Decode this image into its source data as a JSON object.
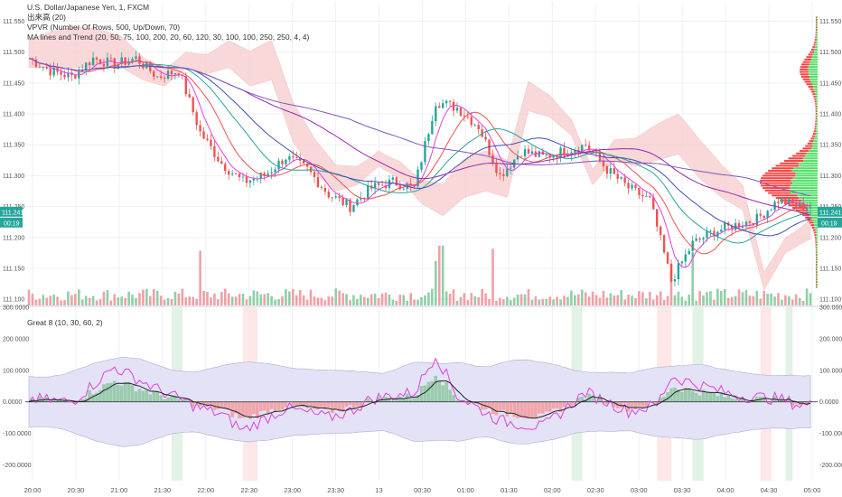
{
  "legend": {
    "symbol": "U.S. Dollar/Japanese Yen, 1, FXCM",
    "volume": "出来高 (20)",
    "vpvr": "VPVR (Number Of Rows, 500, Up/Down, 70)",
    "ma": "MA lines and Trend (20, 50, 75, 100, 200, 20, 60, 120, 30, 100, 100, 250, 250, 4, 4)",
    "osc": "Great 8 (10, 30, 60, 2)"
  },
  "colors": {
    "up": "#26a69a",
    "down": "#ef5350",
    "vol_up": "#8fcfa8",
    "vol_down": "#f0a0a6",
    "cloud": "#f7cfcf",
    "cloud_green": "#cfe9d4",
    "vp_red": "#ff2d2d",
    "vp_green": "#3ddc55",
    "price_tag": "#26a69a",
    "osc_band": "#e4e2f6",
    "osc_line": "#e040e0"
  },
  "price_tag": {
    "value": "111.241",
    "time": "00:19"
  },
  "chart_data": [
    {
      "type": "candlestick",
      "name": "price",
      "x_ticks": [
        "20:00",
        "20:30",
        "21:00",
        "21:30",
        "22:00",
        "22:30",
        "23:00",
        "23:30",
        "13",
        "00:30",
        "01:00",
        "01:30",
        "02:00",
        "02:30",
        "03:00",
        "03:30",
        "04:00",
        "04:30",
        "05:00"
      ],
      "y_ticks": [
        "111.100",
        "111.150",
        "111.200",
        "111.250",
        "111.300",
        "111.350",
        "111.400",
        "111.450",
        "111.500",
        "111.550"
      ],
      "ylim": [
        111.09,
        111.58
      ],
      "candles": [
        {
          "x": 0,
          "o": 111.47,
          "h": 111.51,
          "l": 111.45,
          "c": 111.49
        },
        {
          "x": 6,
          "o": 111.49,
          "h": 111.52,
          "l": 111.46,
          "c": 111.47
        },
        {
          "x": 12,
          "o": 111.47,
          "h": 111.49,
          "l": 111.44,
          "c": 111.46
        },
        {
          "x": 18,
          "o": 111.46,
          "h": 111.5,
          "l": 111.45,
          "c": 111.49
        },
        {
          "x": 24,
          "o": 111.49,
          "h": 111.51,
          "l": 111.47,
          "c": 111.48
        },
        {
          "x": 30,
          "o": 111.48,
          "h": 111.5,
          "l": 111.47,
          "c": 111.49
        },
        {
          "x": 36,
          "o": 111.49,
          "h": 111.5,
          "l": 111.45,
          "c": 111.46
        },
        {
          "x": 42,
          "o": 111.46,
          "h": 111.48,
          "l": 111.44,
          "c": 111.47
        },
        {
          "x": 48,
          "o": 111.47,
          "h": 111.48,
          "l": 111.35,
          "c": 111.37
        },
        {
          "x": 54,
          "o": 111.37,
          "h": 111.38,
          "l": 111.31,
          "c": 111.32
        },
        {
          "x": 60,
          "o": 111.32,
          "h": 111.33,
          "l": 111.28,
          "c": 111.29
        },
        {
          "x": 66,
          "o": 111.29,
          "h": 111.31,
          "l": 111.28,
          "c": 111.3
        },
        {
          "x": 72,
          "o": 111.3,
          "h": 111.34,
          "l": 111.29,
          "c": 111.33
        },
        {
          "x": 78,
          "o": 111.33,
          "h": 111.34,
          "l": 111.3,
          "c": 111.31
        },
        {
          "x": 84,
          "o": 111.31,
          "h": 111.32,
          "l": 111.26,
          "c": 111.27
        },
        {
          "x": 90,
          "o": 111.27,
          "h": 111.28,
          "l": 111.24,
          "c": 111.25
        },
        {
          "x": 96,
          "o": 111.25,
          "h": 111.29,
          "l": 111.25,
          "c": 111.28
        },
        {
          "x": 102,
          "o": 111.28,
          "h": 111.3,
          "l": 111.27,
          "c": 111.29
        },
        {
          "x": 108,
          "o": 111.29,
          "h": 111.3,
          "l": 111.26,
          "c": 111.28
        },
        {
          "x": 114,
          "o": 111.28,
          "h": 111.44,
          "l": 111.28,
          "c": 111.42
        },
        {
          "x": 120,
          "o": 111.42,
          "h": 111.45,
          "l": 111.38,
          "c": 111.41
        },
        {
          "x": 126,
          "o": 111.41,
          "h": 111.42,
          "l": 111.37,
          "c": 111.38
        },
        {
          "x": 132,
          "o": 111.38,
          "h": 111.39,
          "l": 111.28,
          "c": 111.3
        },
        {
          "x": 138,
          "o": 111.3,
          "h": 111.36,
          "l": 111.29,
          "c": 111.34
        },
        {
          "x": 144,
          "o": 111.34,
          "h": 111.36,
          "l": 111.32,
          "c": 111.33
        },
        {
          "x": 150,
          "o": 111.33,
          "h": 111.35,
          "l": 111.31,
          "c": 111.34
        },
        {
          "x": 156,
          "o": 111.34,
          "h": 111.36,
          "l": 111.33,
          "c": 111.35
        },
        {
          "x": 162,
          "o": 111.35,
          "h": 111.36,
          "l": 111.3,
          "c": 111.31
        },
        {
          "x": 168,
          "o": 111.31,
          "h": 111.32,
          "l": 111.27,
          "c": 111.28
        },
        {
          "x": 174,
          "o": 111.28,
          "h": 111.29,
          "l": 111.24,
          "c": 111.26
        },
        {
          "x": 180,
          "o": 111.26,
          "h": 111.27,
          "l": 111.11,
          "c": 111.13
        },
        {
          "x": 186,
          "o": 111.13,
          "h": 111.2,
          "l": 111.12,
          "c": 111.19
        },
        {
          "x": 192,
          "o": 111.19,
          "h": 111.22,
          "l": 111.18,
          "c": 111.21
        },
        {
          "x": 198,
          "o": 111.21,
          "h": 111.23,
          "l": 111.2,
          "c": 111.22
        },
        {
          "x": 204,
          "o": 111.22,
          "h": 111.24,
          "l": 111.21,
          "c": 111.23
        },
        {
          "x": 210,
          "o": 111.23,
          "h": 111.27,
          "l": 111.22,
          "c": 111.26
        },
        {
          "x": 216,
          "o": 111.26,
          "h": 111.27,
          "l": 111.24,
          "c": 111.25
        }
      ]
    },
    {
      "type": "line",
      "name": "oscillator",
      "y_ticks": [
        "300.0000",
        "200.0000",
        "100.0000",
        "0.0000",
        "-100.0000",
        "-200.0000"
      ],
      "ylim": [
        -250,
        300
      ],
      "x": [
        0,
        12,
        24,
        36,
        48,
        54,
        60,
        72,
        84,
        90,
        96,
        108,
        114,
        120,
        132,
        144,
        156,
        168,
        176,
        180,
        186,
        198,
        210,
        216
      ],
      "values": [
        10,
        0,
        110,
        40,
        -20,
        -40,
        -90,
        -20,
        -50,
        -30,
        10,
        30,
        150,
        20,
        -60,
        -80,
        30,
        -30,
        -10,
        80,
        60,
        20,
        10,
        -10
      ]
    }
  ]
}
